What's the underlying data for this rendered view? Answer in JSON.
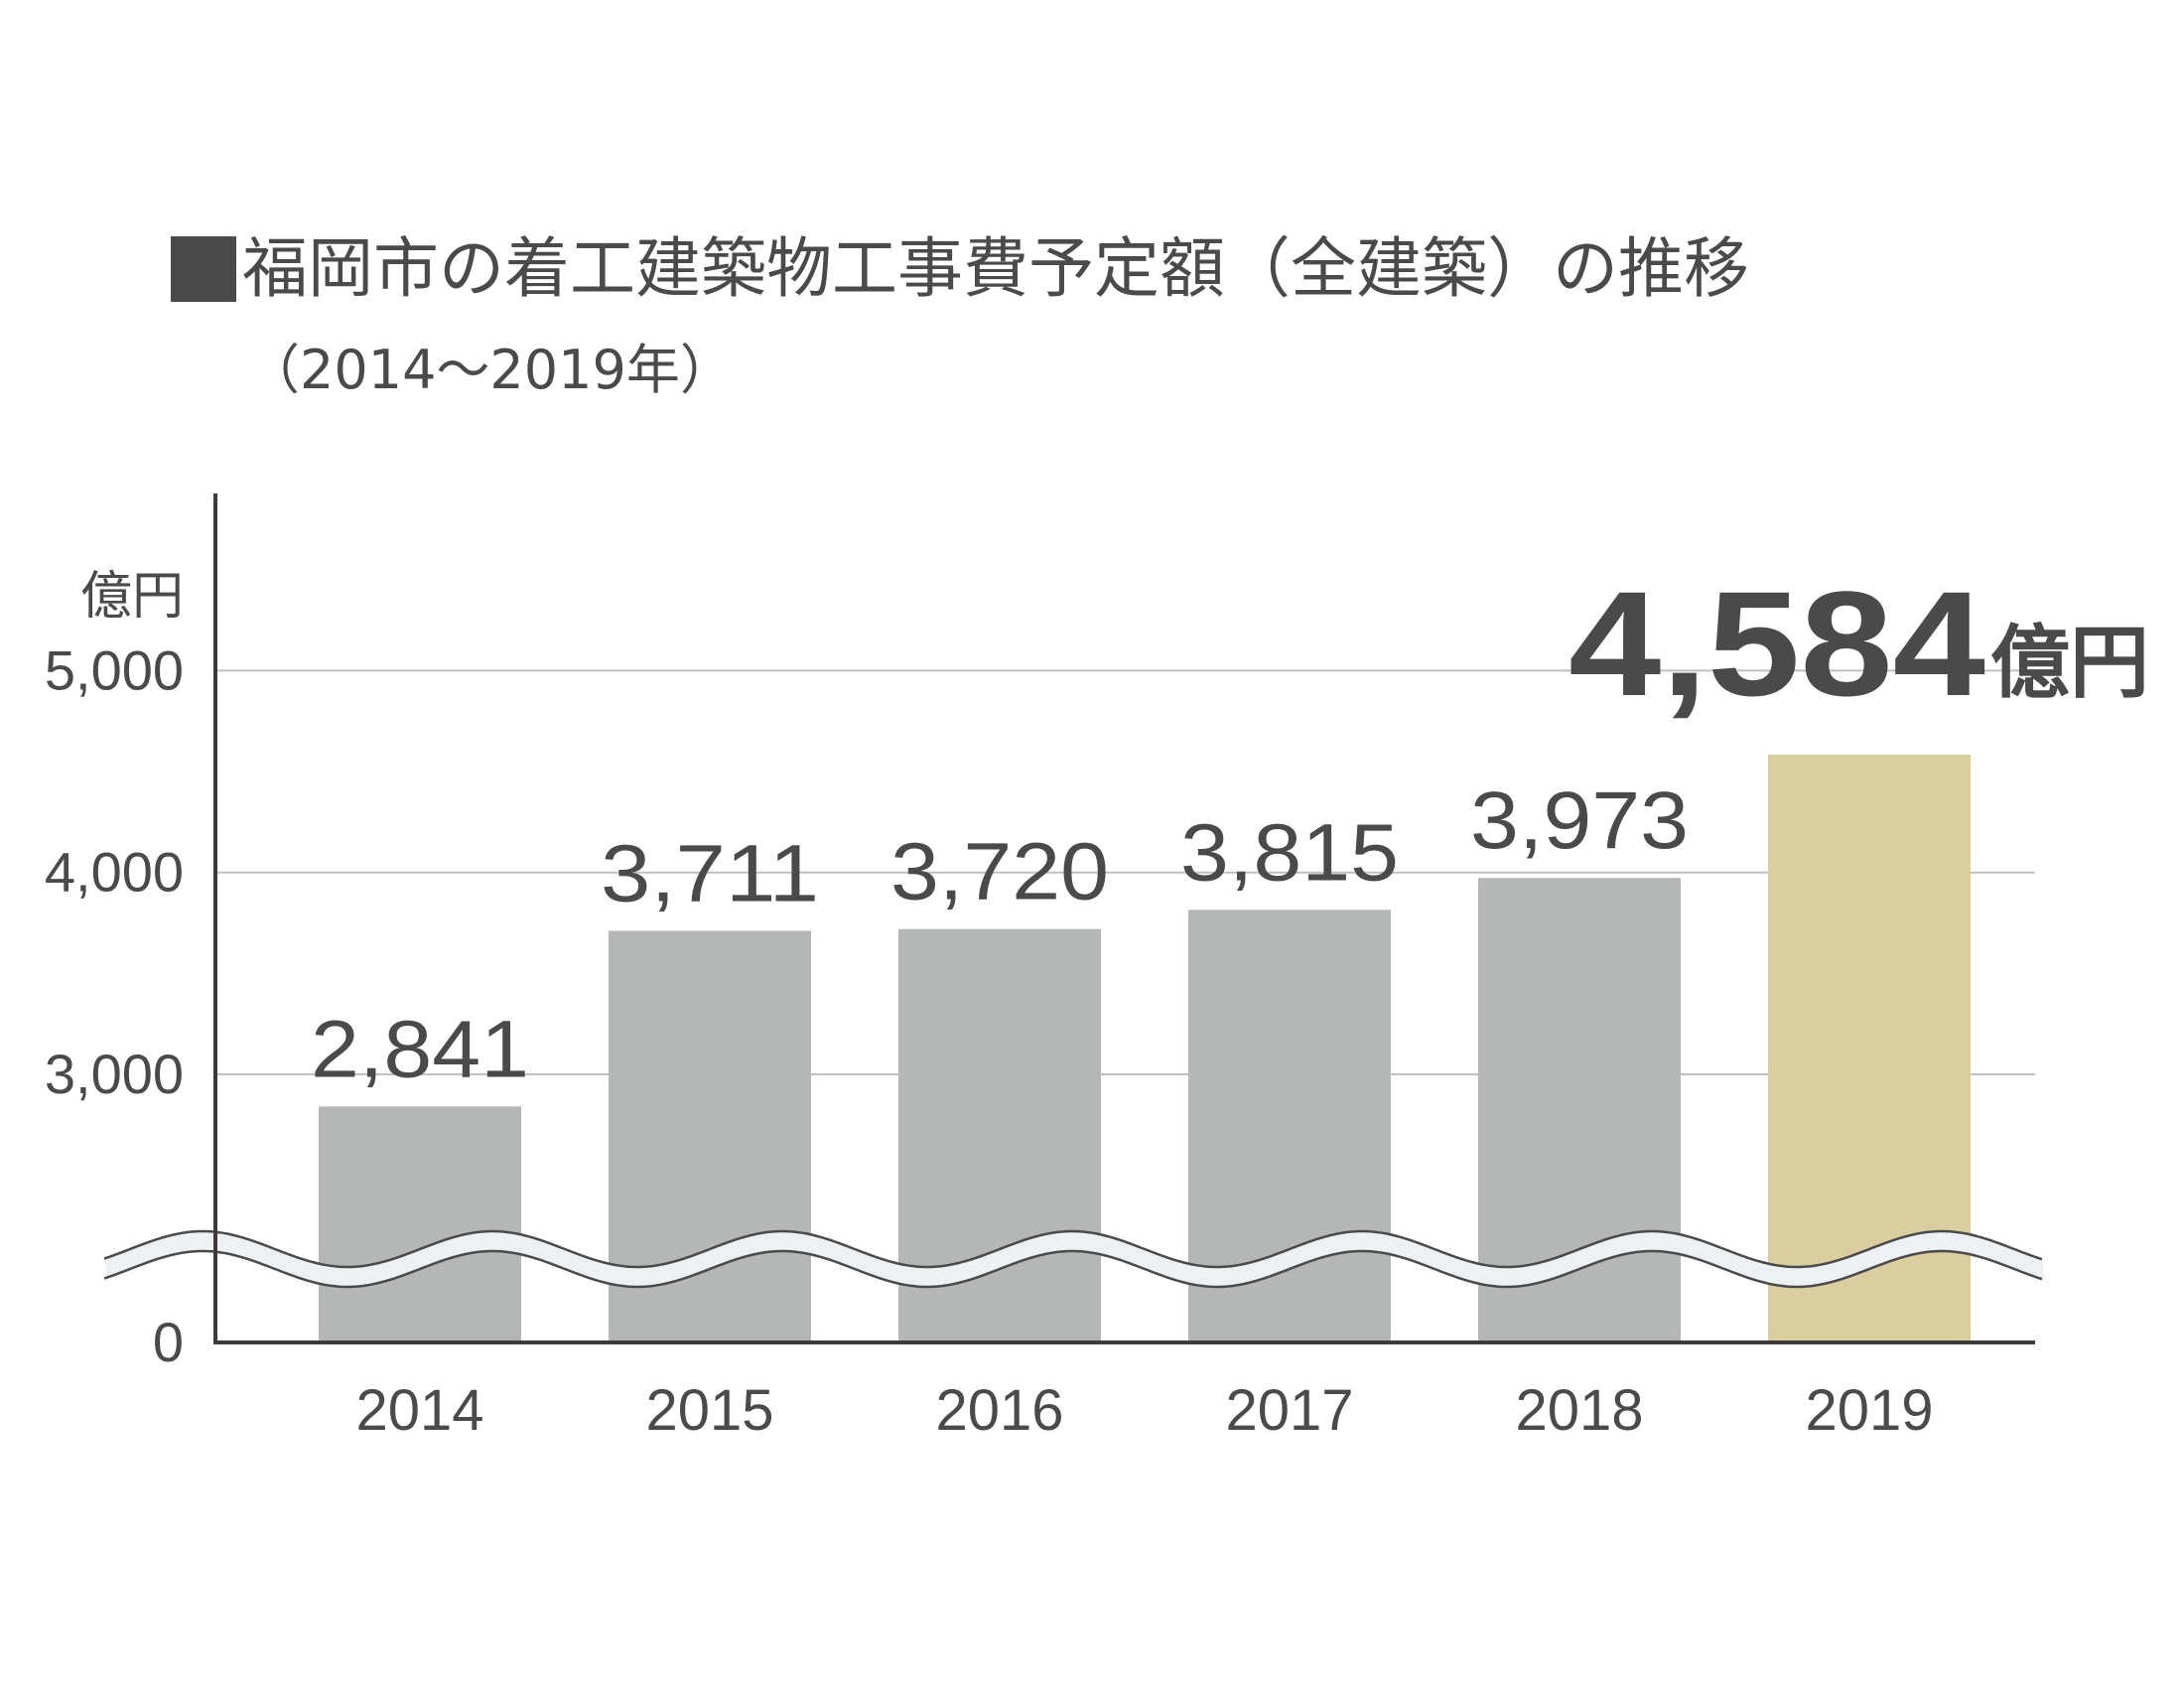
{
  "title": "福岡市の着工建築物工事費予定額（全建築）の推移",
  "subtitle": "（2014～2019年）",
  "chart_data": {
    "type": "bar",
    "title": "福岡市の着工建築物工事費予定額（全建築）の推移",
    "subtitle": "（2014～2019年）",
    "unit": "億円",
    "categories": [
      "2014",
      "2015",
      "2016",
      "2017",
      "2018",
      "2019"
    ],
    "values": [
      2841,
      3711,
      3720,
      3815,
      3973,
      4584
    ],
    "value_labels": [
      "2,841",
      "3,711",
      "3,720",
      "3,815",
      "3,973",
      "4,584"
    ],
    "highlight_label": "4,584",
    "highlight_unit": "億円",
    "y_ticks": [
      0,
      3000,
      4000,
      5000
    ],
    "y_tick_labels": [
      "0",
      "3,000",
      "4,000",
      "5,000"
    ],
    "ylim": [
      2200,
      5800
    ],
    "axis_break": true,
    "grid": true,
    "colors": {
      "bar": "#b5b6b6",
      "highlight": "#dacd9f",
      "text": "#4a4a4a",
      "axis": "#3e3a39",
      "grid": "#c0c0c0"
    }
  }
}
